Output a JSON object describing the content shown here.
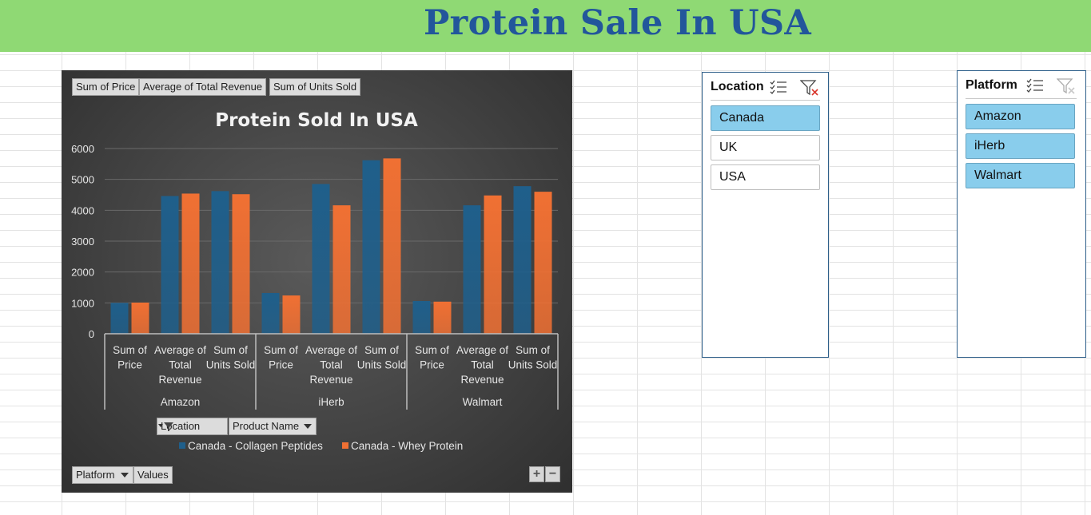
{
  "banner": {
    "title": "Protein Sale In USA",
    "color": "#8fd974",
    "title_color": "#22569b"
  },
  "chart": {
    "value_buttons": [
      "Sum of Price",
      "Average of Total Revenue",
      "Sum of Units Sold"
    ],
    "axis_buttons": {
      "location": "Location",
      "product": "Product Name"
    },
    "row_buttons": {
      "platform": "Platform",
      "values": "Values"
    },
    "zoom": {
      "plus": "+",
      "minus": "−"
    }
  },
  "chart_data": {
    "type": "bar",
    "title": "Protein Sold In USA",
    "ylim": [
      0,
      6000
    ],
    "yticks": [
      0,
      1000,
      2000,
      3000,
      4000,
      5000,
      6000
    ],
    "groups": [
      {
        "name": "Amazon",
        "categories": [
          [
            "Sum of",
            "Price"
          ],
          [
            "Average of",
            "Total",
            "Revenue"
          ],
          [
            "Sum of",
            "Units Sold"
          ]
        ]
      },
      {
        "name": "iHerb",
        "categories": [
          [
            "Sum of",
            "Price"
          ],
          [
            "Average of",
            "Total",
            "Revenue"
          ],
          [
            "Sum of",
            "Units Sold"
          ]
        ]
      },
      {
        "name": "Walmart",
        "categories": [
          [
            "Sum of",
            "Price"
          ],
          [
            "Average of",
            "Total",
            "Revenue"
          ],
          [
            "Sum of",
            "Units Sold"
          ]
        ]
      }
    ],
    "series": [
      {
        "name": "Canada - Collagen Peptides",
        "color": "#1f5f8b",
        "values": [
          1000,
          4460,
          4620,
          1320,
          4850,
          5620,
          1060,
          4160,
          4780
        ]
      },
      {
        "name": "Canada - Whey Protein",
        "color": "#f07033",
        "values": [
          1010,
          4540,
          4520,
          1240,
          4160,
          5680,
          1040,
          4480,
          4600
        ]
      }
    ],
    "grid": true,
    "legend": "bottom"
  },
  "slicers": {
    "location": {
      "title": "Location",
      "items": [
        "Canada",
        "UK",
        "USA"
      ],
      "selected": [
        "Canada"
      ]
    },
    "platform": {
      "title": "Platform",
      "items": [
        "Amazon",
        "iHerb",
        "Walmart"
      ],
      "selected": [
        "Amazon",
        "iHerb",
        "Walmart"
      ]
    }
  }
}
